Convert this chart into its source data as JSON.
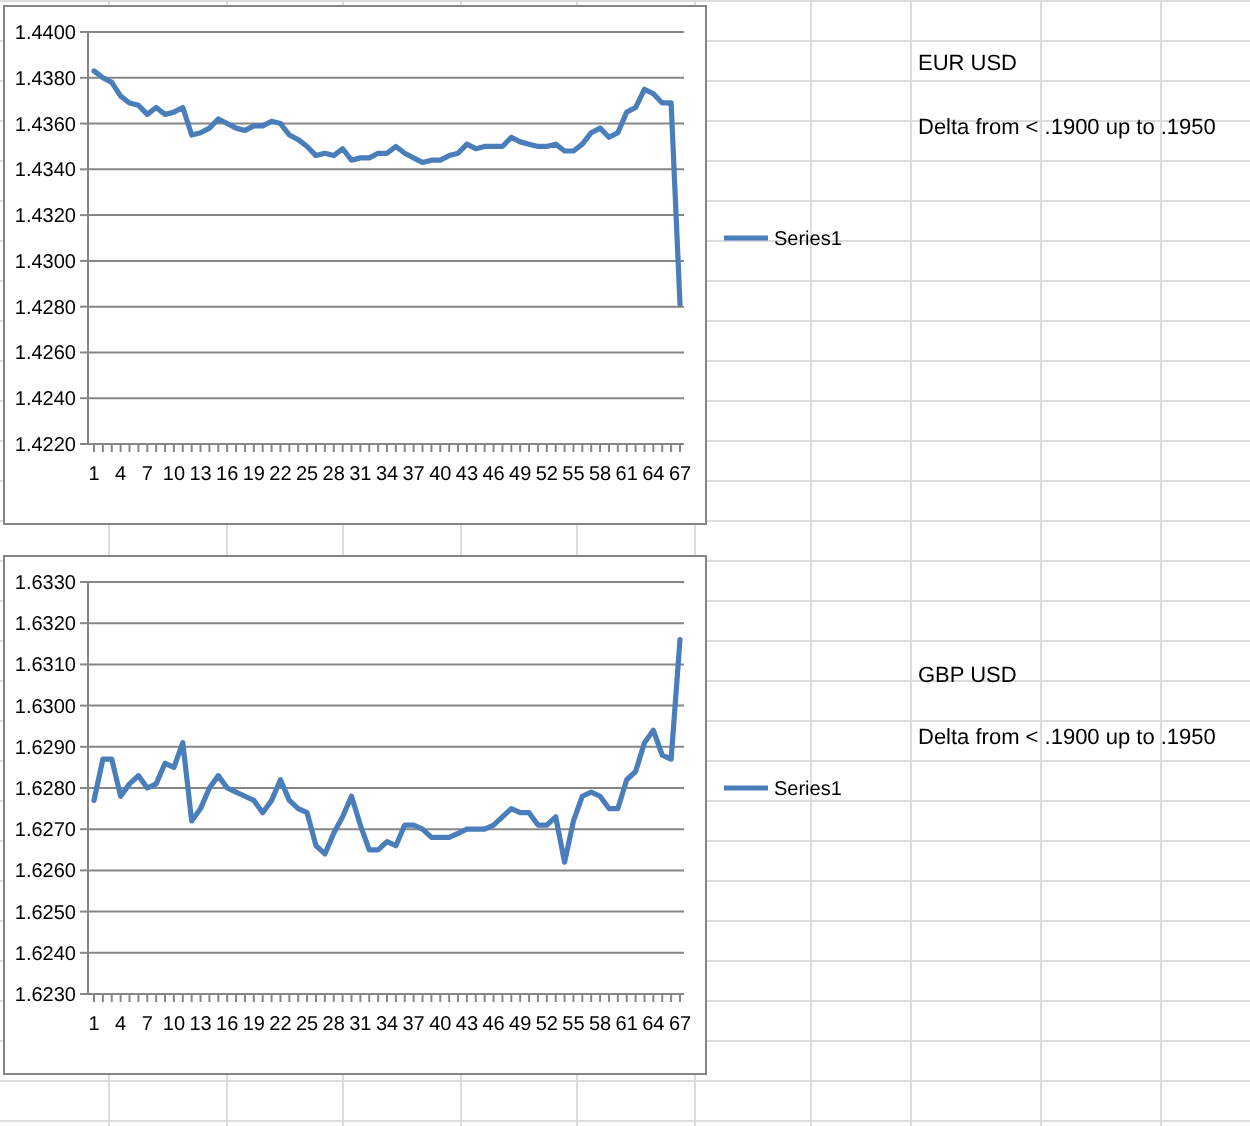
{
  "chart_data": [
    {
      "type": "line",
      "categories": [
        "1",
        null,
        null,
        "4",
        null,
        null,
        "7",
        null,
        null,
        "10",
        null,
        null,
        "13",
        null,
        null,
        "16",
        null,
        null,
        "19",
        null,
        null,
        "22",
        null,
        null,
        "25",
        null,
        null,
        "28",
        null,
        null,
        "31",
        null,
        null,
        "34",
        null,
        null,
        "37",
        null,
        null,
        "40",
        null,
        null,
        "43",
        null,
        null,
        "46",
        null,
        null,
        "49",
        null,
        null,
        "52",
        null,
        null,
        "55",
        null,
        null,
        "58",
        null,
        null,
        "61",
        null,
        null,
        "64",
        null,
        null,
        "67"
      ],
      "series": [
        {
          "name": "Series1",
          "color": "#4a7ebb",
          "values": [
            1.4383,
            1.438,
            1.4378,
            1.4372,
            1.4369,
            1.4368,
            1.4364,
            1.4367,
            1.4364,
            1.4365,
            1.4367,
            1.4355,
            1.4356,
            1.4358,
            1.4362,
            1.436,
            1.4358,
            1.4357,
            1.4359,
            1.4359,
            1.4361,
            1.436,
            1.4355,
            1.4353,
            1.435,
            1.4346,
            1.4347,
            1.4346,
            1.4349,
            1.4344,
            1.4345,
            1.4345,
            1.4347,
            1.4347,
            1.435,
            1.4347,
            1.4345,
            1.4343,
            1.4344,
            1.4344,
            1.4346,
            1.4347,
            1.4351,
            1.4349,
            1.435,
            1.435,
            1.435,
            1.4354,
            1.4352,
            1.4351,
            1.435,
            1.435,
            1.4351,
            1.4348,
            1.4348,
            1.4351,
            1.4356,
            1.4358,
            1.4354,
            1.4356,
            1.4365,
            1.4367,
            1.4375,
            1.4373,
            1.4369,
            1.4369,
            1.4281
          ]
        }
      ],
      "ylim": [
        1.422,
        1.44
      ],
      "yticks": [
        {
          "value": 1.422,
          "label": "1.4220"
        },
        {
          "value": 1.424,
          "label": "1.4240"
        },
        {
          "value": 1.426,
          "label": "1.4260"
        },
        {
          "value": 1.428,
          "label": "1.4280"
        },
        {
          "value": 1.43,
          "label": "1.4300"
        },
        {
          "value": 1.432,
          "label": "1.4320"
        },
        {
          "value": 1.434,
          "label": "1.4340"
        },
        {
          "value": 1.436,
          "label": "1.4360"
        },
        {
          "value": 1.438,
          "label": "1.4380"
        },
        {
          "value": 1.44,
          "label": "1.4400"
        }
      ],
      "grid": "y",
      "legend": "right",
      "marker": "none",
      "line_style": "solid",
      "annotations": [
        "EUR USD",
        "Delta from < .1900 up to .1950"
      ]
    },
    {
      "type": "line",
      "categories": [
        "1",
        null,
        null,
        "4",
        null,
        null,
        "7",
        null,
        null,
        "10",
        null,
        null,
        "13",
        null,
        null,
        "16",
        null,
        null,
        "19",
        null,
        null,
        "22",
        null,
        null,
        "25",
        null,
        null,
        "28",
        null,
        null,
        "31",
        null,
        null,
        "34",
        null,
        null,
        "37",
        null,
        null,
        "40",
        null,
        null,
        "43",
        null,
        null,
        "46",
        null,
        null,
        "49",
        null,
        null,
        "52",
        null,
        null,
        "55",
        null,
        null,
        "58",
        null,
        null,
        "61",
        null,
        null,
        "64",
        null,
        null,
        "67"
      ],
      "series": [
        {
          "name": "Series1",
          "color": "#4a7ebb",
          "values": [
            1.6277,
            1.6287,
            1.6287,
            1.6278,
            1.6281,
            1.6283,
            1.628,
            1.6281,
            1.6286,
            1.6285,
            1.6291,
            1.6272,
            1.6275,
            1.628,
            1.6283,
            1.628,
            1.6279,
            1.6278,
            1.6277,
            1.6274,
            1.6277,
            1.6282,
            1.6277,
            1.6275,
            1.6274,
            1.6266,
            1.6264,
            1.6269,
            1.6273,
            1.6278,
            1.6271,
            1.6265,
            1.6265,
            1.6267,
            1.6266,
            1.6271,
            1.6271,
            1.627,
            1.6268,
            1.6268,
            1.6268,
            1.6269,
            1.627,
            1.627,
            1.627,
            1.6271,
            1.6273,
            1.6275,
            1.6274,
            1.6274,
            1.6271,
            1.6271,
            1.6273,
            1.6262,
            1.6272,
            1.6278,
            1.6279,
            1.6278,
            1.6275,
            1.6275,
            1.6282,
            1.6284,
            1.6291,
            1.6294,
            1.6288,
            1.6287,
            1.6316
          ]
        }
      ],
      "ylim": [
        1.623,
        1.633
      ],
      "yticks": [
        {
          "value": 1.623,
          "label": "1.6230"
        },
        {
          "value": 1.624,
          "label": "1.6240"
        },
        {
          "value": 1.625,
          "label": "1.6250"
        },
        {
          "value": 1.626,
          "label": "1.6260"
        },
        {
          "value": 1.627,
          "label": "1.6270"
        },
        {
          "value": 1.628,
          "label": "1.6280"
        },
        {
          "value": 1.629,
          "label": "1.6290"
        },
        {
          "value": 1.63,
          "label": "1.6300"
        },
        {
          "value": 1.631,
          "label": "1.6310"
        },
        {
          "value": 1.632,
          "label": "1.6320"
        },
        {
          "value": 1.633,
          "label": "1.6330"
        }
      ],
      "grid": "y",
      "legend": "right",
      "marker": "none",
      "line_style": "solid",
      "annotations": [
        "GBP USD",
        "Delta from < .1900 up to .1950"
      ]
    }
  ]
}
